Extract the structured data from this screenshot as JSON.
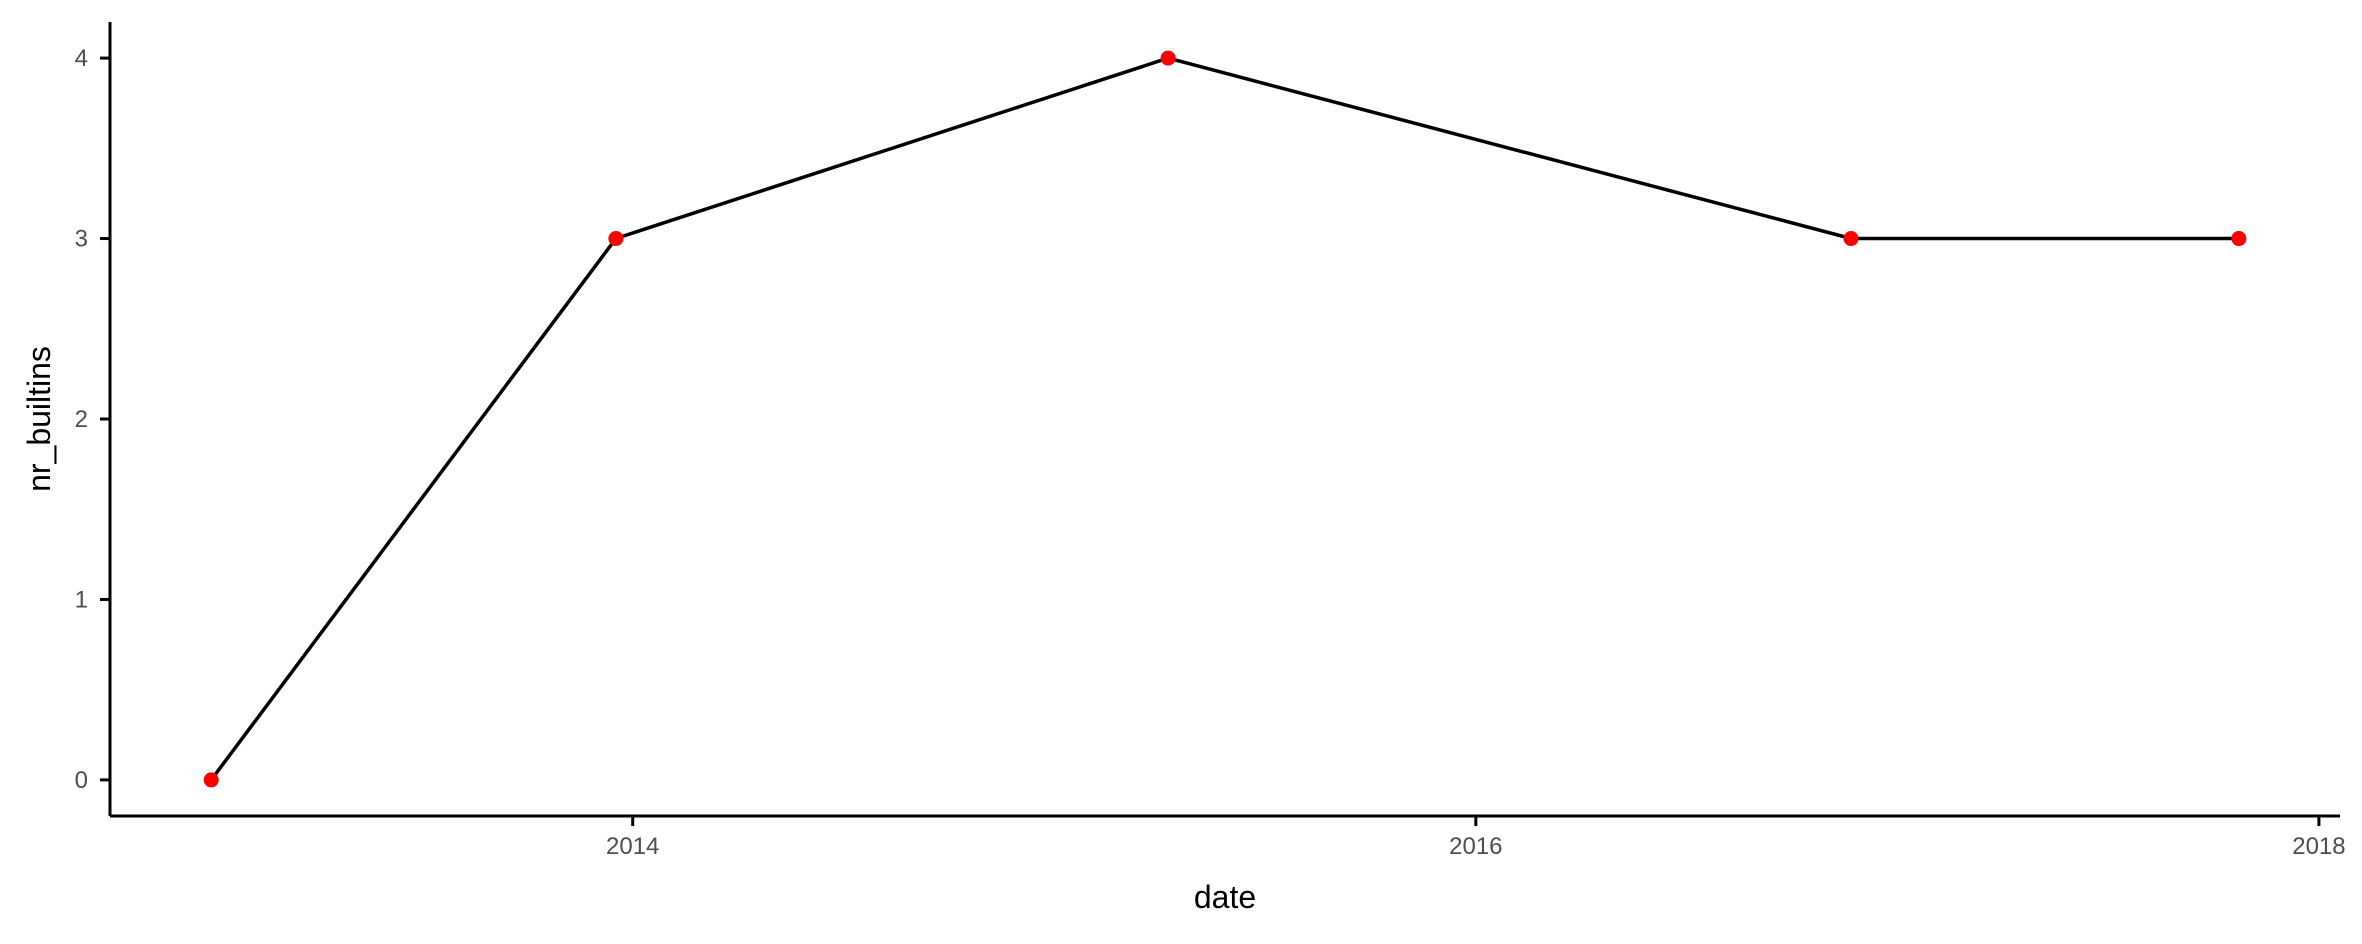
{
  "chart_data": {
    "type": "line",
    "title": "",
    "xlabel": "date",
    "ylabel": "nr_builtins",
    "x_type": "date",
    "x": [
      2013.0,
      2013.96,
      2015.27,
      2016.89,
      2017.81
    ],
    "series": [
      {
        "name": "nr_builtins",
        "values": [
          0,
          3,
          4,
          3,
          3
        ]
      }
    ],
    "x_ticks": [
      2014,
      2016,
      2018
    ],
    "x_tick_labels": [
      "2014",
      "2016",
      "2018"
    ],
    "y_ticks": [
      0,
      1,
      2,
      3,
      4
    ],
    "y_tick_labels": [
      "0",
      "1",
      "2",
      "3",
      "4"
    ],
    "xlim": [
      2012.76,
      2018.05
    ],
    "ylim": [
      -0.2,
      4.2
    ],
    "grid": false,
    "legend": "none",
    "colors": {
      "line": "#000000",
      "points": "#ff0000",
      "axis": "#000000"
    }
  }
}
